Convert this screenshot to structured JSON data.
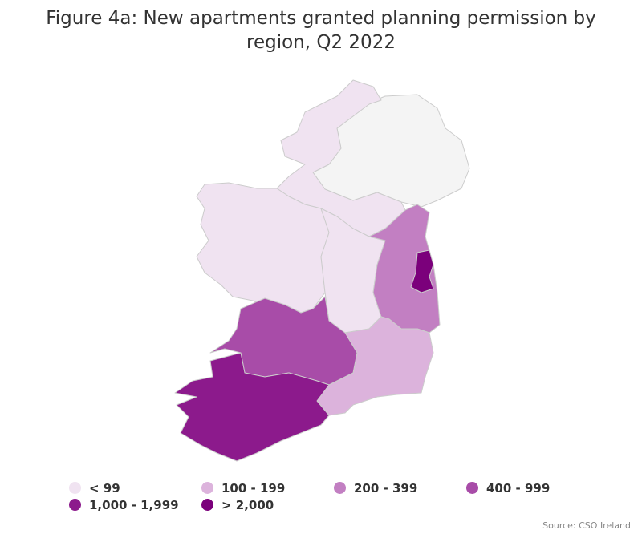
{
  "title": "Figure 4a: New apartments granted planning permission by region, Q2 2022",
  "legend": [
    {
      "label": "< 99",
      "color": "#f0e3f1"
    },
    {
      "label": "100 - 199",
      "color": "#dcb3dc"
    },
    {
      "label": "200 - 399",
      "color": "#c27fc2"
    },
    {
      "label": "400 - 999",
      "color": "#a84ca8"
    },
    {
      "label": "1,000 - 1,999",
      "color": "#8c1a8c"
    },
    {
      "label": "> 2,000",
      "color": "#7b007b"
    }
  ],
  "source": "Source: CSO Ireland"
}
